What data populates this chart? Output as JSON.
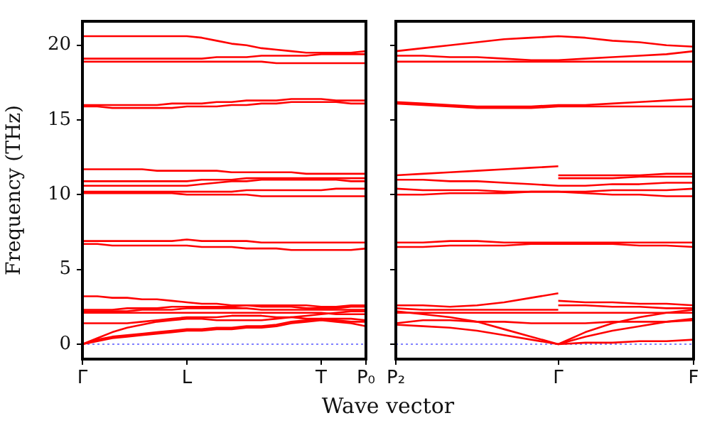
{
  "chart_data": [
    {
      "type": "line",
      "xlabel": "Wave vector",
      "ylabel": "Frequency (THz)",
      "categories": [
        "Γ",
        null,
        null,
        null,
        null,
        null,
        null,
        "L",
        null,
        null,
        null,
        null,
        null,
        null,
        null,
        null,
        "T",
        null,
        null,
        "P₀"
      ],
      "ylim": [
        -1,
        21.6
      ],
      "yticks": [
        0,
        5,
        10,
        15,
        20
      ],
      "grid": false,
      "legend": false,
      "ref_lines": [
        {
          "axis": "y",
          "value": 0,
          "color": "#8080ff",
          "line_style": "dotted"
        }
      ],
      "series": [
        {
          "color": "#ff0000",
          "values": [
            20.6,
            20.6,
            20.6,
            20.6,
            20.6,
            20.6,
            20.6,
            20.6,
            20.5,
            20.3,
            20.1,
            20.0,
            19.8,
            19.7,
            19.6,
            19.5,
            19.5,
            19.5,
            19.5,
            19.6
          ]
        },
        {
          "color": "#ff0000",
          "values": [
            19.1,
            19.1,
            19.1,
            19.1,
            19.1,
            19.1,
            19.1,
            19.1,
            19.1,
            19.2,
            19.2,
            19.2,
            19.3,
            19.3,
            19.3,
            19.3,
            19.4,
            19.4,
            19.4,
            19.4
          ]
        },
        {
          "color": "#ff0000",
          "values": [
            18.9,
            18.9,
            18.9,
            18.9,
            18.9,
            18.9,
            18.9,
            18.9,
            18.9,
            18.9,
            18.9,
            18.9,
            18.9,
            18.8,
            18.8,
            18.8,
            18.8,
            18.8,
            18.8,
            18.8
          ]
        },
        {
          "color": "#ff0000",
          "values": [
            16.0,
            16.0,
            16.0,
            16.0,
            16.0,
            16.0,
            16.1,
            16.1,
            16.1,
            16.2,
            16.2,
            16.3,
            16.3,
            16.3,
            16.4,
            16.4,
            16.4,
            16.3,
            16.3,
            16.3
          ]
        },
        {
          "color": "#ff0000",
          "values": [
            15.9,
            15.9,
            15.8,
            15.8,
            15.8,
            15.8,
            15.8,
            15.9,
            15.9,
            15.9,
            16.0,
            16.0,
            16.1,
            16.1,
            16.2,
            16.2,
            16.2,
            16.2,
            16.1,
            16.1
          ]
        },
        {
          "color": "#ff0000",
          "values": [
            11.7,
            11.7,
            11.7,
            11.7,
            11.7,
            11.6,
            11.6,
            11.6,
            11.6,
            11.6,
            11.5,
            11.5,
            11.5,
            11.5,
            11.5,
            11.4,
            11.4,
            11.4,
            11.4,
            11.4
          ]
        },
        {
          "color": "#ff0000",
          "values": [
            10.9,
            10.9,
            10.9,
            10.9,
            10.9,
            10.9,
            10.9,
            10.9,
            11.0,
            11.0,
            11.0,
            11.1,
            11.1,
            11.1,
            11.1,
            11.1,
            11.1,
            11.1,
            11.1,
            11.1
          ]
        },
        {
          "color": "#ff0000",
          "values": [
            10.6,
            10.6,
            10.6,
            10.6,
            10.6,
            10.6,
            10.6,
            10.6,
            10.7,
            10.8,
            10.9,
            10.9,
            11.0,
            11.0,
            11.0,
            11.0,
            11.0,
            11.0,
            10.9,
            10.9
          ]
        },
        {
          "color": "#ff0000",
          "values": [
            10.2,
            10.2,
            10.2,
            10.2,
            10.2,
            10.2,
            10.2,
            10.2,
            10.2,
            10.2,
            10.2,
            10.3,
            10.3,
            10.3,
            10.3,
            10.3,
            10.3,
            10.4,
            10.4,
            10.4
          ]
        },
        {
          "color": "#ff0000",
          "values": [
            10.1,
            10.1,
            10.1,
            10.1,
            10.1,
            10.1,
            10.1,
            10.0,
            10.0,
            10.0,
            10.0,
            10.0,
            9.9,
            9.9,
            9.9,
            9.9,
            9.9,
            9.9,
            9.9,
            9.9
          ]
        },
        {
          "color": "#ff0000",
          "values": [
            6.9,
            6.9,
            6.9,
            6.9,
            6.9,
            6.9,
            6.9,
            7.0,
            6.9,
            6.9,
            6.9,
            6.9,
            6.8,
            6.8,
            6.8,
            6.8,
            6.8,
            6.8,
            6.8,
            6.8
          ]
        },
        {
          "color": "#ff0000",
          "values": [
            6.7,
            6.7,
            6.6,
            6.6,
            6.6,
            6.6,
            6.6,
            6.6,
            6.5,
            6.5,
            6.5,
            6.4,
            6.4,
            6.4,
            6.3,
            6.3,
            6.3,
            6.3,
            6.3,
            6.4
          ]
        },
        {
          "color": "#ff0000",
          "values": [
            3.2,
            3.2,
            3.1,
            3.1,
            3.0,
            3.0,
            2.9,
            2.8,
            2.7,
            2.7,
            2.6,
            2.6,
            2.5,
            2.5,
            2.5,
            2.4,
            2.4,
            2.4,
            2.5,
            2.5
          ]
        },
        {
          "color": "#ff0000",
          "values": [
            2.3,
            2.3,
            2.3,
            2.4,
            2.4,
            2.4,
            2.5,
            2.5,
            2.5,
            2.5,
            2.5,
            2.6,
            2.6,
            2.6,
            2.6,
            2.6,
            2.5,
            2.5,
            2.6,
            2.6
          ]
        },
        {
          "color": "#ff0000",
          "values": [
            2.2,
            2.2,
            2.2,
            2.2,
            2.3,
            2.3,
            2.3,
            2.4,
            2.4,
            2.4,
            2.4,
            2.4,
            2.3,
            2.3,
            2.3,
            2.3,
            2.3,
            2.3,
            2.3,
            2.3
          ]
        },
        {
          "color": "#ff0000",
          "values": [
            2.1,
            2.1,
            2.1,
            2.1,
            2.1,
            2.1,
            2.1,
            2.1,
            2.1,
            2.1,
            2.1,
            2.1,
            2.1,
            2.1,
            2.1,
            2.1,
            2.1,
            2.0,
            2.0,
            2.0
          ]
        },
        {
          "color": "#ff0000",
          "values": [
            1.4,
            1.4,
            1.4,
            1.4,
            1.5,
            1.6,
            1.7,
            1.8,
            1.8,
            1.8,
            1.9,
            1.9,
            1.9,
            1.8,
            1.8,
            1.7,
            1.7,
            1.6,
            1.5,
            1.5
          ]
        },
        {
          "color": "#ff0000",
          "values": [
            0,
            0.4,
            0.8,
            1.1,
            1.3,
            1.5,
            1.6,
            1.7,
            1.7,
            1.6,
            1.6,
            1.6,
            1.6,
            1.7,
            1.8,
            1.9,
            2.0,
            2.1,
            2.2,
            2.2
          ]
        },
        {
          "color": "#ff0000",
          "values": [
            0,
            0.3,
            0.5,
            0.6,
            0.7,
            0.8,
            0.9,
            1.0,
            1.0,
            1.1,
            1.1,
            1.2,
            1.2,
            1.3,
            1.5,
            1.6,
            1.7,
            1.7,
            1.7,
            1.6
          ]
        },
        {
          "color": "#ff0000",
          "values": [
            0,
            0.2,
            0.4,
            0.5,
            0.6,
            0.7,
            0.8,
            0.9,
            0.9,
            1.0,
            1.0,
            1.1,
            1.1,
            1.2,
            1.4,
            1.5,
            1.6,
            1.5,
            1.4,
            1.2
          ]
        }
      ]
    },
    {
      "type": "line",
      "categories": [
        "P₂",
        null,
        null,
        null,
        null,
        null,
        "Γ",
        null,
        null,
        null,
        null,
        "F"
      ],
      "ylim": [
        -1,
        21.6
      ],
      "yticks": [
        0,
        5,
        10,
        15,
        20
      ],
      "tick_labels": "x",
      "grid": false,
      "legend": false,
      "ref_lines": [
        {
          "axis": "y",
          "value": 0,
          "color": "#8080ff",
          "line_style": "dotted"
        }
      ],
      "series": [
        {
          "color": "#ff0000",
          "values": [
            19.6,
            19.8,
            20.0,
            20.2,
            20.4,
            20.5,
            20.6,
            20.5,
            20.3,
            20.2,
            20.0,
            19.9
          ]
        },
        {
          "color": "#ff0000",
          "values": [
            19.3,
            19.3,
            19.2,
            19.2,
            19.1,
            19.0,
            19.0,
            19.1,
            19.2,
            19.3,
            19.4,
            19.6
          ]
        },
        {
          "color": "#ff0000",
          "values": [
            18.9,
            18.9,
            18.9,
            18.9,
            18.9,
            18.9,
            18.9,
            18.9,
            18.9,
            18.9,
            18.9,
            18.9
          ]
        },
        {
          "color": "#ff0000",
          "values": [
            16.2,
            16.1,
            16.0,
            15.9,
            15.9,
            15.9,
            16.0,
            16.0,
            16.1,
            16.2,
            16.3,
            16.4
          ]
        },
        {
          "color": "#ff0000",
          "values": [
            16.1,
            16.0,
            15.9,
            15.8,
            15.8,
            15.8,
            15.9,
            15.9,
            15.9,
            15.9,
            15.9,
            15.9
          ]
        },
        {
          "color": "#ff0000",
          "values": [
            11.3,
            11.4,
            11.5,
            11.6,
            11.7,
            11.8,
            11.9,
            null,
            null,
            null,
            null,
            null
          ]
        },
        {
          "color": "#ff0000",
          "values": [
            null,
            null,
            null,
            null,
            null,
            null,
            11.3,
            11.3,
            11.3,
            11.3,
            11.4,
            11.4
          ]
        },
        {
          "color": "#ff0000",
          "values": [
            null,
            null,
            null,
            null,
            null,
            null,
            11.1,
            11.1,
            11.1,
            11.2,
            11.2,
            11.2
          ]
        },
        {
          "color": "#ff0000",
          "values": [
            11.0,
            11.0,
            10.9,
            10.9,
            10.8,
            10.7,
            10.6,
            10.6,
            10.7,
            10.7,
            10.8,
            10.8
          ]
        },
        {
          "color": "#ff0000",
          "values": [
            10.4,
            10.3,
            10.3,
            10.3,
            10.2,
            10.2,
            10.2,
            10.2,
            10.3,
            10.3,
            10.3,
            10.4
          ]
        },
        {
          "color": "#ff0000",
          "values": [
            10.0,
            10.0,
            10.1,
            10.1,
            10.1,
            10.2,
            10.2,
            10.1,
            10.0,
            10.0,
            9.9,
            9.9
          ]
        },
        {
          "color": "#ff0000",
          "values": [
            6.8,
            6.8,
            6.9,
            6.9,
            6.8,
            6.8,
            6.8,
            6.8,
            6.8,
            6.8,
            6.8,
            6.8
          ]
        },
        {
          "color": "#ff0000",
          "values": [
            6.5,
            6.5,
            6.6,
            6.6,
            6.6,
            6.7,
            6.7,
            6.7,
            6.7,
            6.6,
            6.6,
            6.5
          ]
        },
        {
          "color": "#ff0000",
          "values": [
            2.6,
            2.6,
            2.5,
            2.6,
            2.8,
            3.1,
            3.4,
            null,
            null,
            null,
            null,
            null
          ]
        },
        {
          "color": "#ff0000",
          "values": [
            2.4,
            2.3,
            2.3,
            2.3,
            2.3,
            2.3,
            2.3,
            null,
            null,
            null,
            null,
            null
          ]
        },
        {
          "color": "#ff0000",
          "values": [
            null,
            null,
            null,
            null,
            null,
            null,
            2.9,
            2.8,
            2.8,
            2.7,
            2.7,
            2.6
          ]
        },
        {
          "color": "#ff0000",
          "values": [
            null,
            null,
            null,
            null,
            null,
            null,
            2.6,
            2.6,
            2.5,
            2.5,
            2.4,
            2.4
          ]
        },
        {
          "color": "#ff0000",
          "values": [
            2.1,
            2.1,
            2.1,
            2.1,
            2.1,
            2.1,
            2.1,
            2.1,
            2.1,
            2.1,
            2.1,
            2.1
          ]
        },
        {
          "color": "#ff0000",
          "values": [
            1.4,
            1.6,
            1.6,
            1.5,
            1.5,
            1.4,
            1.4,
            1.4,
            1.5,
            1.5,
            1.5,
            1.6
          ]
        },
        {
          "color": "#ff0000",
          "values": [
            1.3,
            1.2,
            1.1,
            0.9,
            0.6,
            0.3,
            0,
            0.8,
            1.4,
            1.8,
            2.1,
            2.3
          ]
        },
        {
          "color": "#ff0000",
          "values": [
            2.2,
            2.0,
            1.8,
            1.5,
            1.0,
            0.5,
            0,
            0.5,
            0.9,
            1.2,
            1.5,
            1.7
          ]
        },
        {
          "color": "#ff0000",
          "values": [
            null,
            null,
            null,
            null,
            null,
            null,
            0,
            0.1,
            0.1,
            0.2,
            0.2,
            0.3
          ]
        }
      ]
    }
  ]
}
